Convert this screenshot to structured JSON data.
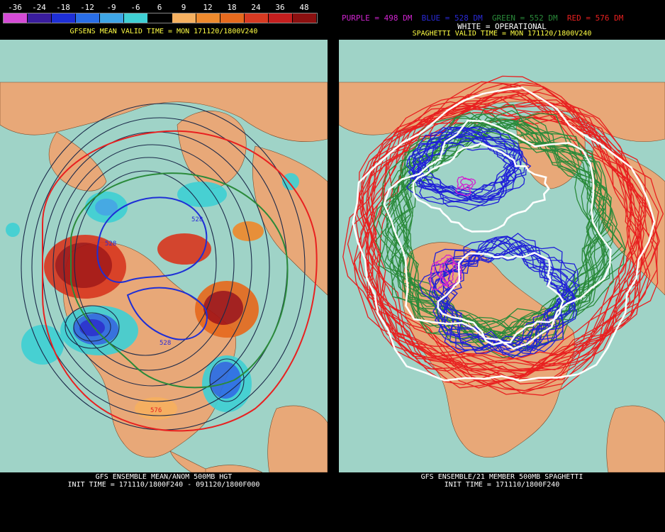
{
  "left": {
    "legend": {
      "ticks": [
        "-36",
        "-24",
        "-18",
        "-12",
        "-9",
        "-6",
        "6",
        "9",
        "12",
        "18",
        "24",
        "36",
        "48"
      ],
      "colors": [
        "#d54bd6",
        "#3a1d9e",
        "#1e2fd6",
        "#2a6ee6",
        "#3fa6e6",
        "#40d0d4",
        "#000000",
        "#f5b060",
        "#ee8a2e",
        "#e66a1e",
        "#d83a22",
        "#c41e1e",
        "#8c1010"
      ]
    },
    "valid_title": "GFSENS MEAN VALID TIME = MON 171120/1800V240",
    "contour_labels": [
      "528",
      "528",
      "528",
      "576"
    ],
    "footer_line1": "GFS ENSEMBLE MEAN/ANOM 500MB HGT",
    "footer_line2": "INIT TIME = 171110/1800F240 - 091120/1800F000"
  },
  "right": {
    "members": [
      {
        "label": "PURPLE = 498 DM",
        "color": "#d024d0"
      },
      {
        "label": "BLUE = 528 DM",
        "color": "#2a2ad8"
      },
      {
        "label": "GREEN = 552 DM",
        "color": "#2a8a3a"
      },
      {
        "label": "RED = 576 DM",
        "color": "#e82020"
      }
    ],
    "operational_label": "WHITE = OPERATIONAL",
    "valid_title": "SPAGHETTI VALID TIME = MON 171120/1800V240",
    "footer_line1": "GFS ENSEMBLE/21 MEMBER 500MB SPAGHETTI",
    "footer_line2": "INIT TIME = 171110/1800F240"
  },
  "colors": {
    "ocean": "#9fd3c7",
    "land": "#e8a878",
    "title_yellow": "#ffff44"
  }
}
